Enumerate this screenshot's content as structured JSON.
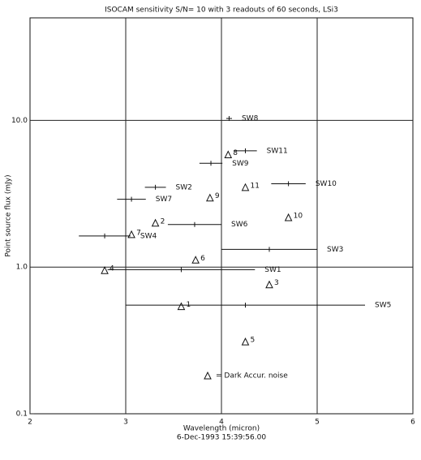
{
  "chart_data": {
    "type": "scatter",
    "title": "ISOCAM sensitivity S/N= 10 with 3 readouts of 60 seconds, LSi3",
    "x_label": "Wavelength (micron)",
    "y_label": "Point source flux (mJy)",
    "subtitle": "6-Dec-1993 15:39:56.00",
    "xlim": [
      2,
      6
    ],
    "xticks": [
      2,
      3,
      4,
      5,
      6
    ],
    "ylim": [
      0.1,
      50
    ],
    "yticks": [
      0.1,
      {
        "value": 1,
        "label": "1.0"
      },
      {
        "value": 10,
        "label": "10.0"
      }
    ],
    "log_y": true,
    "grid": true,
    "filters": {
      "labels": [
        "SW1",
        "SW2",
        "SW3",
        "SW4",
        "SW5",
        "SW6",
        "SW7",
        "SW8",
        "SW9",
        "SW10",
        "SW11"
      ],
      "x": [
        3.58,
        3.31,
        4.5,
        2.78,
        4.25,
        3.72,
        3.06,
        4.08,
        3.89,
        4.7,
        4.25
      ],
      "xerr": [
        0.77,
        0.11,
        0.5,
        0.27,
        1.25,
        0.28,
        0.15,
        0.03,
        0.12,
        0.18,
        0.12
      ],
      "y": [
        0.96,
        3.5,
        1.32,
        1.63,
        0.55,
        1.95,
        2.9,
        10.3,
        5.1,
        3.7,
        6.2
      ]
    },
    "points": {
      "labels": [
        "1",
        "2",
        "3",
        "4",
        "5",
        "6",
        "7",
        "8",
        "9",
        "10",
        "11"
      ],
      "x": [
        3.58,
        3.31,
        4.5,
        2.78,
        4.25,
        3.73,
        3.06,
        4.07,
        3.88,
        4.7,
        4.25
      ],
      "y": [
        0.54,
        2.0,
        0.76,
        0.95,
        0.31,
        1.12,
        1.67,
        5.85,
        2.97,
        2.18,
        3.5
      ]
    },
    "legend_text": "= Dark Accur. noise"
  }
}
